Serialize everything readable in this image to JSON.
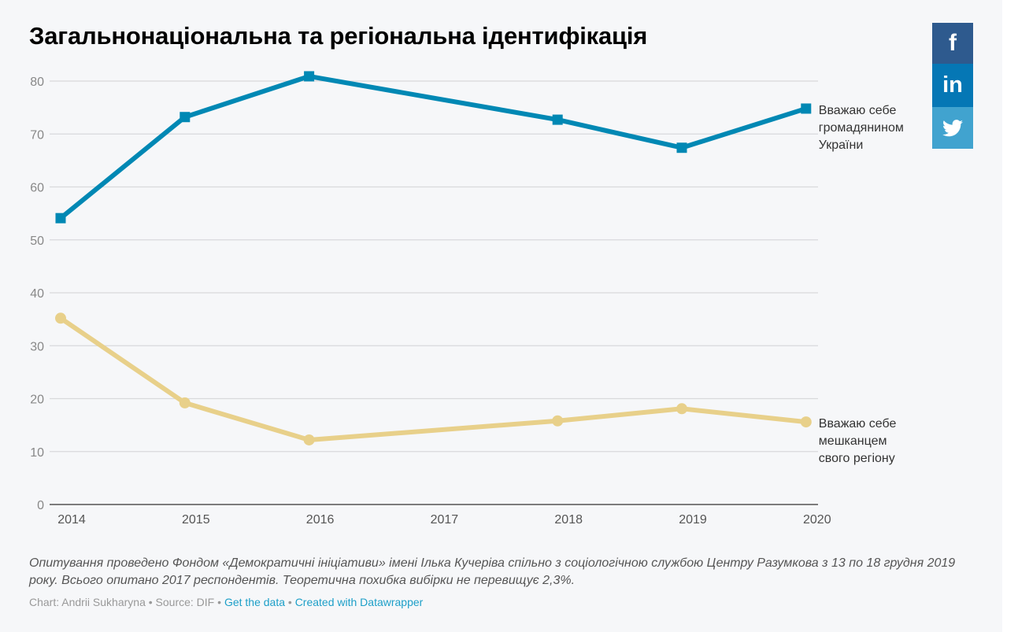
{
  "title": "Загальнонаціональна та регіональна ідентифікація",
  "social": {
    "facebook": {
      "icon": "facebook-icon",
      "glyph": "f",
      "color": "#2e5a8e"
    },
    "linkedin": {
      "icon": "linkedin-icon",
      "glyph": "in",
      "color": "#0577b5"
    },
    "twitter": {
      "icon": "twitter-icon",
      "color": "#41a3cf"
    }
  },
  "chart_data": {
    "type": "line",
    "title": "Загальнонаціональна та регіональна ідентифікація",
    "xlabel": "",
    "ylabel": "",
    "x_ticks": [
      "2014",
      "2015",
      "2016",
      "2017",
      "2018",
      "2019",
      "2020"
    ],
    "y_ticks": [
      0,
      10,
      20,
      30,
      40,
      50,
      60,
      70,
      80
    ],
    "ylim": [
      0,
      80
    ],
    "grid": true,
    "legend": "direct labels right",
    "series": [
      {
        "name": "Вважаю себе громадянином України",
        "label_lines": [
          "Вважаю себе",
          "громадянином",
          "України"
        ],
        "color": "#0088b4",
        "marker": "square",
        "x": [
          2014,
          2015,
          2016,
          2018,
          2019,
          2020
        ],
        "values": [
          54.1,
          73.2,
          80.9,
          72.7,
          67.4,
          74.8
        ]
      },
      {
        "name": "Вважаю себе мешканцем свого регіону",
        "label_lines": [
          "Вважаю себе",
          "мешканцем",
          "свого регіону"
        ],
        "color": "#e8d08a",
        "marker": "circle",
        "x": [
          2014,
          2015,
          2016,
          2018,
          2019,
          2020
        ],
        "values": [
          35.2,
          19.2,
          12.2,
          15.8,
          18.1,
          15.6
        ]
      }
    ]
  },
  "notes": "Опитування проведено Фондом «Демократичні ініціативи» імені Ілька Кучеріва спільно з соціологічною службою Центру Разумкова з 13 по 18 грудня 2019 року. Всього опитано 2017 респондентів. Теоретична похибка вибірки не перевищує 2,3%.",
  "byline": {
    "chart_prefix": "Chart: Andrii Sukharyna",
    "separator": " • ",
    "source": "Source: DIF",
    "get_data": "Get the data",
    "created_with": "Created with Datawrapper"
  }
}
